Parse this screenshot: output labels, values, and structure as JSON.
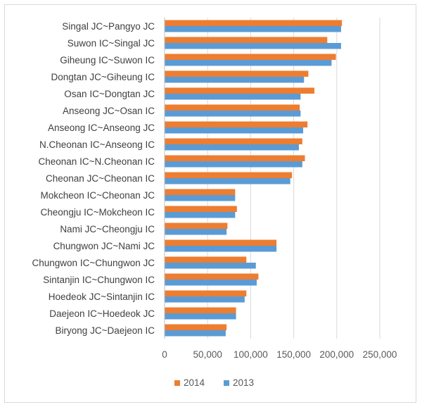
{
  "chart_data": {
    "type": "bar",
    "orientation": "horizontal",
    "categories": [
      "Singal JC~Pangyo JC",
      "Suwon IC~Singal JC",
      "Giheung IC~Suwon IC",
      "Dongtan JC~Giheung IC",
      "Osan IC~Dongtan JC",
      "Anseong JC~Osan IC",
      "Anseong IC~Anseong JC",
      "N.Cheonan IC~Anseong IC",
      "Cheonan IC~N.Cheonan IC",
      "Cheonan JC~Cheonan IC",
      "Mokcheon IC~Cheonan JC",
      "Cheongju IC~Mokcheon IC",
      "Nami JC~Cheongju IC",
      "Chungwon JC~Nami JC",
      "Chungwon IC~Chungwon JC",
      "Sintanjin IC~Chungwon IC",
      "Hoedeok JC~Sintanjin IC",
      "Daejeon IC~Hoedeok JC",
      "Biryong JC~Daejeon IC"
    ],
    "series": [
      {
        "name": "2014",
        "color": "#ED7D31",
        "values": [
          206000,
          189000,
          199000,
          167000,
          174000,
          157000,
          166000,
          160000,
          163000,
          148000,
          82000,
          84000,
          73000,
          130000,
          95000,
          109000,
          95000,
          83000,
          72000
        ]
      },
      {
        "name": "2013",
        "color": "#5B9BD5",
        "values": [
          205000,
          205000,
          194000,
          162000,
          158000,
          158000,
          161000,
          156000,
          160000,
          146000,
          82000,
          82000,
          72000,
          130000,
          106000,
          107000,
          93000,
          83000,
          71000
        ]
      }
    ],
    "xlim": [
      0,
      250000
    ],
    "xticks": [
      0,
      50000,
      100000,
      150000,
      200000,
      250000
    ],
    "xtick_labels": [
      "0",
      "50,000",
      "100,000",
      "150,000",
      "200,000",
      "250,000"
    ],
    "grid": true,
    "legend": {
      "placement": "bottom",
      "items": [
        {
          "label": "2014",
          "color": "#ED7D31"
        },
        {
          "label": "2013",
          "color": "#5B9BD5"
        }
      ]
    },
    "title": "",
    "xlabel": "",
    "ylabel": ""
  }
}
